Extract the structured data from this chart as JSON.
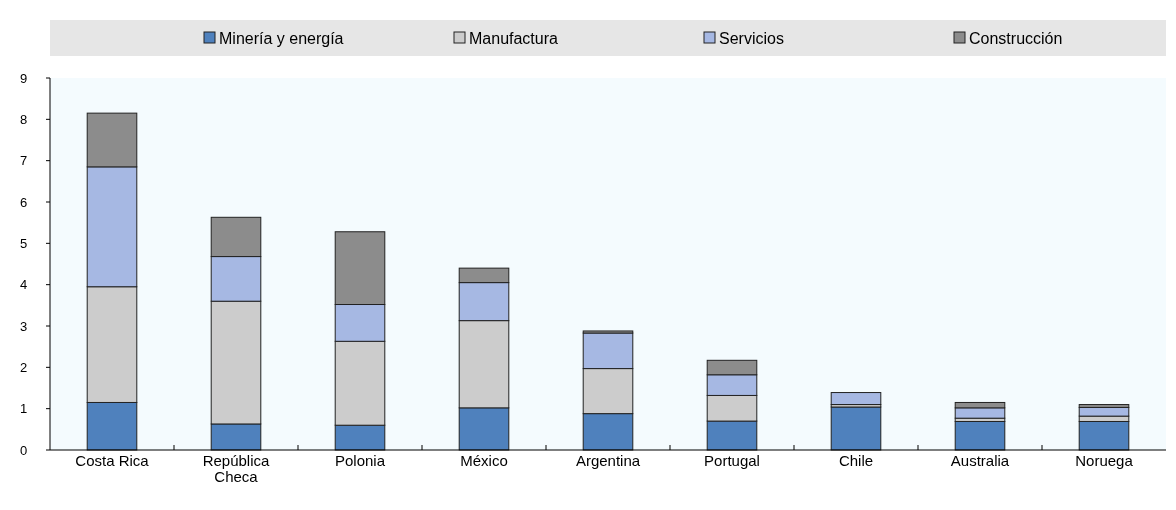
{
  "chart_data": {
    "type": "bar",
    "stacked": true,
    "categories": [
      "Costa Rica",
      "República Checa",
      "Polonia",
      "México",
      "Argentina",
      "Portugal",
      "Chile",
      "Australia",
      "Noruega"
    ],
    "series": [
      {
        "name": "Minería y energía",
        "color": "#4f81bd",
        "values": [
          1.15,
          0.63,
          0.6,
          1.02,
          0.88,
          0.7,
          1.04,
          0.69,
          0.69
        ]
      },
      {
        "name": "Manufactura",
        "color": "#cccccc",
        "values": [
          2.8,
          2.97,
          2.03,
          2.11,
          1.09,
          0.62,
          0.06,
          0.08,
          0.13
        ]
      },
      {
        "name": "Servicios",
        "color": "#a6b8e3",
        "values": [
          2.9,
          1.08,
          0.89,
          0.92,
          0.86,
          0.5,
          0.29,
          0.25,
          0.21
        ]
      },
      {
        "name": "Construcción",
        "color": "#8c8c8c",
        "values": [
          1.3,
          0.95,
          1.76,
          0.35,
          0.05,
          0.35,
          0,
          0.13,
          0.07
        ]
      }
    ],
    "ylim": [
      0,
      9
    ],
    "yticks": [
      0,
      1,
      2,
      3,
      4,
      5,
      6,
      7,
      8,
      9
    ],
    "grid": false,
    "legend": "top"
  }
}
